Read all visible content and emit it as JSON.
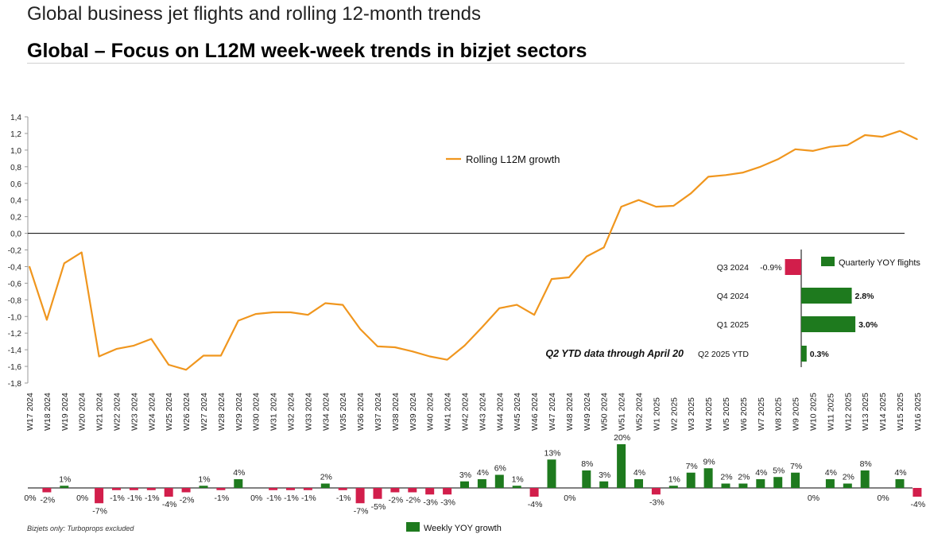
{
  "header": {
    "title": "Global business jet flights and rolling 12-month trends",
    "subtitle": "Global – Focus on L12M week-week trends in bizjet sectors"
  },
  "footnote": "Bizjets only: Turboprops excluded",
  "annotation": "Q2 YTD data through April 20",
  "colors": {
    "line": "#F0961E",
    "positive": "#1E7A1E",
    "negative": "#D21E4B",
    "axis": "#000000"
  },
  "chart_data": [
    {
      "type": "line",
      "series": [
        {
          "name": "Rolling L12M growth"
        }
      ],
      "categories": [
        "W17 2024",
        "W18 2024",
        "W19 2024",
        "W20 2024",
        "W21 2024",
        "W22 2024",
        "W23 2024",
        "W24 2024",
        "W25 2024",
        "W26 2024",
        "W27 2024",
        "W28 2024",
        "W29 2024",
        "W30 2024",
        "W31 2024",
        "W32 2024",
        "W33 2024",
        "W34 2024",
        "W35 2024",
        "W36 2024",
        "W37 2024",
        "W38 2024",
        "W39 2024",
        "W40 2024",
        "W41 2024",
        "W42 2024",
        "W43 2024",
        "W44 2024",
        "W45 2024",
        "W46 2024",
        "W47 2024",
        "W48 2024",
        "W49 2024",
        "W50 2024",
        "W51 2024",
        "W52 2024",
        "W1 2025",
        "W2 2025",
        "W3 2025",
        "W4 2025",
        "W5 2025",
        "W6 2025",
        "W7 2025",
        "W8 2025",
        "W9 2025",
        "W10 2025",
        "W11 2025",
        "W12 2025",
        "W13 2025",
        "W14 2025",
        "W15 2025",
        "W16 2025"
      ],
      "values": [
        -0.4,
        -1.04,
        -0.36,
        -0.23,
        -1.48,
        -1.39,
        -1.35,
        -1.27,
        -1.58,
        -1.64,
        -1.47,
        -1.47,
        -1.05,
        -0.97,
        -0.95,
        -0.95,
        -0.98,
        -0.84,
        -0.86,
        -1.15,
        -1.36,
        -1.37,
        -1.42,
        -1.48,
        -1.52,
        -1.35,
        -1.13,
        -0.9,
        -0.86,
        -0.98,
        -0.55,
        -0.53,
        -0.28,
        -0.17,
        0.32,
        0.4,
        0.32,
        0.33,
        0.48,
        0.68,
        0.7,
        0.73,
        0.8,
        0.89,
        1.01,
        0.99,
        1.04,
        1.06,
        1.18,
        1.16,
        1.23,
        1.13
      ],
      "yticks": [
        "1,4",
        "1,2",
        "1,0",
        "0,8",
        "0,6",
        "0,4",
        "0,2",
        "0,0",
        "-0,2",
        "-0,4",
        "-0,6",
        "-0,8",
        "-1,0",
        "-1,2",
        "-1,4",
        "-1,6",
        "-1,8"
      ],
      "ylim": [
        -1.8,
        1.4
      ],
      "legend": "top-center"
    },
    {
      "type": "bar",
      "series": [
        {
          "name": "Weekly YOY growth"
        }
      ],
      "values": [
        0,
        -2,
        1,
        0,
        -7,
        -1,
        -1,
        -1,
        -4,
        -2,
        1,
        -1,
        4,
        0,
        -1,
        -1,
        -1,
        2,
        -1,
        -7,
        -5,
        -2,
        -2,
        -3,
        -3,
        3,
        4,
        6,
        1,
        -4,
        13,
        0,
        8,
        3,
        20,
        4,
        -3,
        1,
        7,
        9,
        2,
        2,
        4,
        5,
        7,
        0,
        4,
        2,
        8,
        0,
        4,
        -4
      ],
      "labels": [
        "0%",
        "-2%",
        "1%",
        "0%",
        "-7%",
        "-1%",
        "-1%",
        "-1%",
        "-4%",
        "-2%",
        "1%",
        "-1%",
        "4%",
        "0%",
        "-1%",
        "-1%",
        "-1%",
        "2%",
        "-1%",
        "-7%",
        "-5%",
        "-2%",
        "-2%",
        "-3%",
        "-3%",
        "3%",
        "4%",
        "6%",
        "1%",
        "-4%",
        "13%",
        "0%",
        "8%",
        "3%",
        "20%",
        "4%",
        "-3%",
        "1%",
        "7%",
        "9%",
        "2%",
        "2%",
        "4%",
        "5%",
        "7%",
        "0%",
        "4%",
        "2%",
        "8%",
        "0%",
        "4%",
        "-4%"
      ],
      "legend": "bottom-center"
    },
    {
      "type": "bar",
      "orientation": "horizontal",
      "series": [
        {
          "name": "Quarterly YOY flights"
        }
      ],
      "categories": [
        "Q3 2024",
        "Q4 2024",
        "Q1 2025",
        "Q2 2025 YTD"
      ],
      "values": [
        -0.9,
        2.8,
        3.0,
        0.3
      ],
      "labels": [
        "-0.9%",
        "2.8%",
        "3.0%",
        "0.3%"
      ],
      "legend": "top-right"
    }
  ]
}
